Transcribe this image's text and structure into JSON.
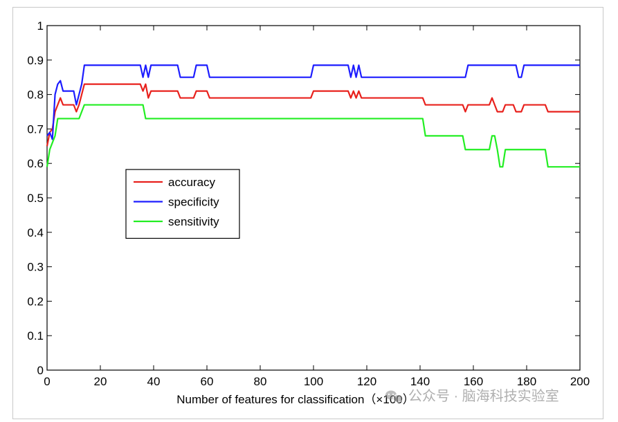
{
  "chart_data": {
    "type": "line",
    "title": "",
    "xlabel": "Number of features for classification（×100）",
    "ylabel": "",
    "xlim": [
      0,
      200
    ],
    "ylim": [
      0,
      1
    ],
    "xticks": [
      0,
      20,
      40,
      60,
      80,
      100,
      120,
      140,
      160,
      180,
      200
    ],
    "yticks": [
      0,
      0.1,
      0.2,
      0.3,
      0.4,
      0.5,
      0.6,
      0.7,
      0.8,
      0.9,
      1
    ],
    "xtick_labels": [
      "0",
      "20",
      "40",
      "60",
      "80",
      "100",
      "120",
      "140",
      "160",
      "180",
      "200"
    ],
    "ytick_labels": [
      "0",
      "0.1",
      "0.2",
      "0.3",
      "0.4",
      "0.5",
      "0.6",
      "0.7",
      "0.8",
      "0.9",
      "1"
    ],
    "grid": false,
    "legend_position": "center-left",
    "series": [
      {
        "name": "accuracy",
        "color": "#e8201c",
        "points": [
          [
            0,
            0.65
          ],
          [
            1,
            0.69
          ],
          [
            2,
            0.7
          ],
          [
            3,
            0.75
          ],
          [
            4,
            0.77
          ],
          [
            5,
            0.79
          ],
          [
            6,
            0.77
          ],
          [
            10,
            0.77
          ],
          [
            11,
            0.75
          ],
          [
            12,
            0.77
          ],
          [
            13,
            0.8
          ],
          [
            14,
            0.83
          ],
          [
            35,
            0.83
          ],
          [
            36,
            0.81
          ],
          [
            37,
            0.83
          ],
          [
            38,
            0.79
          ],
          [
            39,
            0.81
          ],
          [
            49,
            0.81
          ],
          [
            50,
            0.79
          ],
          [
            55,
            0.79
          ],
          [
            56,
            0.81
          ],
          [
            60,
            0.81
          ],
          [
            61,
            0.79
          ],
          [
            99,
            0.79
          ],
          [
            100,
            0.81
          ],
          [
            113,
            0.81
          ],
          [
            114,
            0.79
          ],
          [
            115,
            0.81
          ],
          [
            116,
            0.79
          ],
          [
            117,
            0.81
          ],
          [
            118,
            0.79
          ],
          [
            141,
            0.79
          ],
          [
            142,
            0.77
          ],
          [
            156,
            0.77
          ],
          [
            157,
            0.75
          ],
          [
            158,
            0.77
          ],
          [
            166,
            0.77
          ],
          [
            167,
            0.79
          ],
          [
            168,
            0.77
          ],
          [
            169,
            0.75
          ],
          [
            171,
            0.75
          ],
          [
            172,
            0.77
          ],
          [
            175,
            0.77
          ],
          [
            176,
            0.75
          ],
          [
            178,
            0.75
          ],
          [
            179,
            0.77
          ],
          [
            187,
            0.77
          ],
          [
            188,
            0.75
          ],
          [
            200,
            0.75
          ]
        ]
      },
      {
        "name": "specificity",
        "color": "#1c1cff",
        "points": [
          [
            0,
            0.68
          ],
          [
            1,
            0.69
          ],
          [
            2,
            0.67
          ],
          [
            3,
            0.8
          ],
          [
            4,
            0.83
          ],
          [
            5,
            0.84
          ],
          [
            6,
            0.81
          ],
          [
            10,
            0.81
          ],
          [
            11,
            0.77
          ],
          [
            12,
            0.8
          ],
          [
            13,
            0.83
          ],
          [
            14,
            0.885
          ],
          [
            35,
            0.885
          ],
          [
            36,
            0.85
          ],
          [
            37,
            0.885
          ],
          [
            38,
            0.85
          ],
          [
            39,
            0.885
          ],
          [
            49,
            0.885
          ],
          [
            50,
            0.85
          ],
          [
            55,
            0.85
          ],
          [
            56,
            0.885
          ],
          [
            60,
            0.885
          ],
          [
            61,
            0.85
          ],
          [
            99,
            0.85
          ],
          [
            100,
            0.885
          ],
          [
            113,
            0.885
          ],
          [
            114,
            0.85
          ],
          [
            115,
            0.885
          ],
          [
            116,
            0.85
          ],
          [
            117,
            0.885
          ],
          [
            118,
            0.85
          ],
          [
            157,
            0.85
          ],
          [
            158,
            0.885
          ],
          [
            176,
            0.885
          ],
          [
            177,
            0.85
          ],
          [
            178,
            0.85
          ],
          [
            179,
            0.885
          ],
          [
            200,
            0.885
          ]
        ]
      },
      {
        "name": "sensitivity",
        "color": "#22ee22",
        "points": [
          [
            0,
            0.59
          ],
          [
            1,
            0.64
          ],
          [
            2,
            0.66
          ],
          [
            3,
            0.68
          ],
          [
            4,
            0.73
          ],
          [
            12,
            0.73
          ],
          [
            13,
            0.75
          ],
          [
            14,
            0.77
          ],
          [
            36,
            0.77
          ],
          [
            37,
            0.73
          ],
          [
            141,
            0.73
          ],
          [
            142,
            0.68
          ],
          [
            156,
            0.68
          ],
          [
            157,
            0.64
          ],
          [
            166,
            0.64
          ],
          [
            167,
            0.68
          ],
          [
            168,
            0.68
          ],
          [
            169,
            0.64
          ],
          [
            170,
            0.59
          ],
          [
            171,
            0.59
          ],
          [
            172,
            0.64
          ],
          [
            187,
            0.64
          ],
          [
            188,
            0.59
          ],
          [
            200,
            0.59
          ]
        ]
      }
    ]
  },
  "watermark": {
    "icon": "wechat-icon",
    "text": "公众号 · 脑海科技实验室"
  }
}
